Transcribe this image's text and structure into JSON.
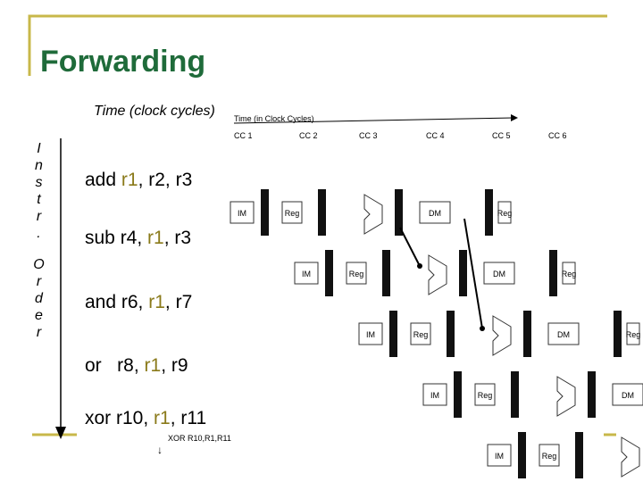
{
  "title": "Forwarding",
  "time_label": "Time (clock cycles)",
  "diagram_time_label": "Time (in Clock Cycles)",
  "clock_cycles": [
    "CC 1",
    "CC 2",
    "CC 3",
    "CC 4",
    "CC 5",
    "CC 6"
  ],
  "order_label": [
    "Instr.",
    "Order"
  ],
  "stage_labels": {
    "im": "IM",
    "reg": "Reg",
    "dm": "DM"
  },
  "highlight_color": "#8a7a1a",
  "instructions": [
    [
      {
        "text": "add "
      },
      {
        "text": "r1",
        "highlight": true
      },
      {
        "text": ", r2, r3"
      }
    ],
    [
      {
        "text": "sub r4, "
      },
      {
        "text": "r1",
        "highlight": true
      },
      {
        "text": ", r3"
      }
    ],
    [
      {
        "text": "and r6, "
      },
      {
        "text": "r1",
        "highlight": true
      },
      {
        "text": ", r7"
      }
    ],
    [
      {
        "text": "or   r8, "
      },
      {
        "text": "r1",
        "highlight": true
      },
      {
        "text": ", r9"
      }
    ],
    [
      {
        "text": "xor r10, "
      },
      {
        "text": "r1",
        "highlight": true
      },
      {
        "text": ", r11"
      }
    ]
  ],
  "small_instruction": "XOR R10,R1,R11"
}
